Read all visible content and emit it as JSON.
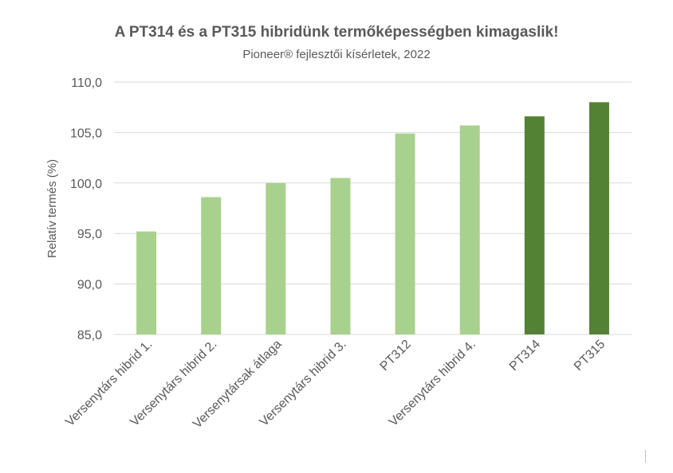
{
  "chart_data": {
    "type": "bar",
    "title": "A PT314 és a PT315 hibridünk termőképességben kimagaslik!",
    "subtitle": "Pioneer® fejlesztői kísérletek, 2022",
    "xlabel": "",
    "ylabel": "Relatív termés (%)",
    "ylim": [
      85,
      110
    ],
    "ytick_step": 5,
    "ytick_labels": [
      "85,0",
      "90,0",
      "95,0",
      "100,0",
      "105,0",
      "110,0"
    ],
    "grid": true,
    "legend": "none",
    "categories": [
      "Versenytárs hibrid 1.",
      "Versenytárs hibrid 2.",
      "Versenytársak átlaga",
      "Versenytárs hibrid 3.",
      "PT312",
      "Versenytárs hibrid 4.",
      "PT314",
      "PT315"
    ],
    "values": [
      95.2,
      98.6,
      100.0,
      100.5,
      104.9,
      105.7,
      106.6,
      108.0
    ],
    "colors": [
      "#a9d18e",
      "#a9d18e",
      "#a9d18e",
      "#a9d18e",
      "#a9d18e",
      "#a9d18e",
      "#548235",
      "#548235"
    ]
  },
  "colors": {
    "gridline": "#d9d9d9",
    "text": "#595959"
  }
}
